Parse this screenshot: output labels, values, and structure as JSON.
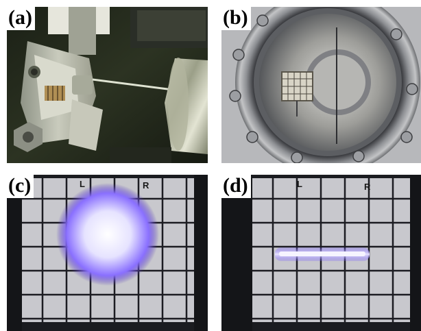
{
  "panels": [
    {
      "label": "(a)"
    },
    {
      "label": "(b)"
    },
    {
      "label": "(c)",
      "screen_letters": [
        "L",
        "R"
      ]
    },
    {
      "label": "(d)",
      "screen_letters": [
        "L",
        "R"
      ]
    }
  ],
  "colors": {
    "beam_glow": "#7a5cff",
    "beam_core": "#f4f4ff",
    "screen": "#cfcfd4",
    "grid": "#1c1c22",
    "metal": "#b9b9ad"
  }
}
